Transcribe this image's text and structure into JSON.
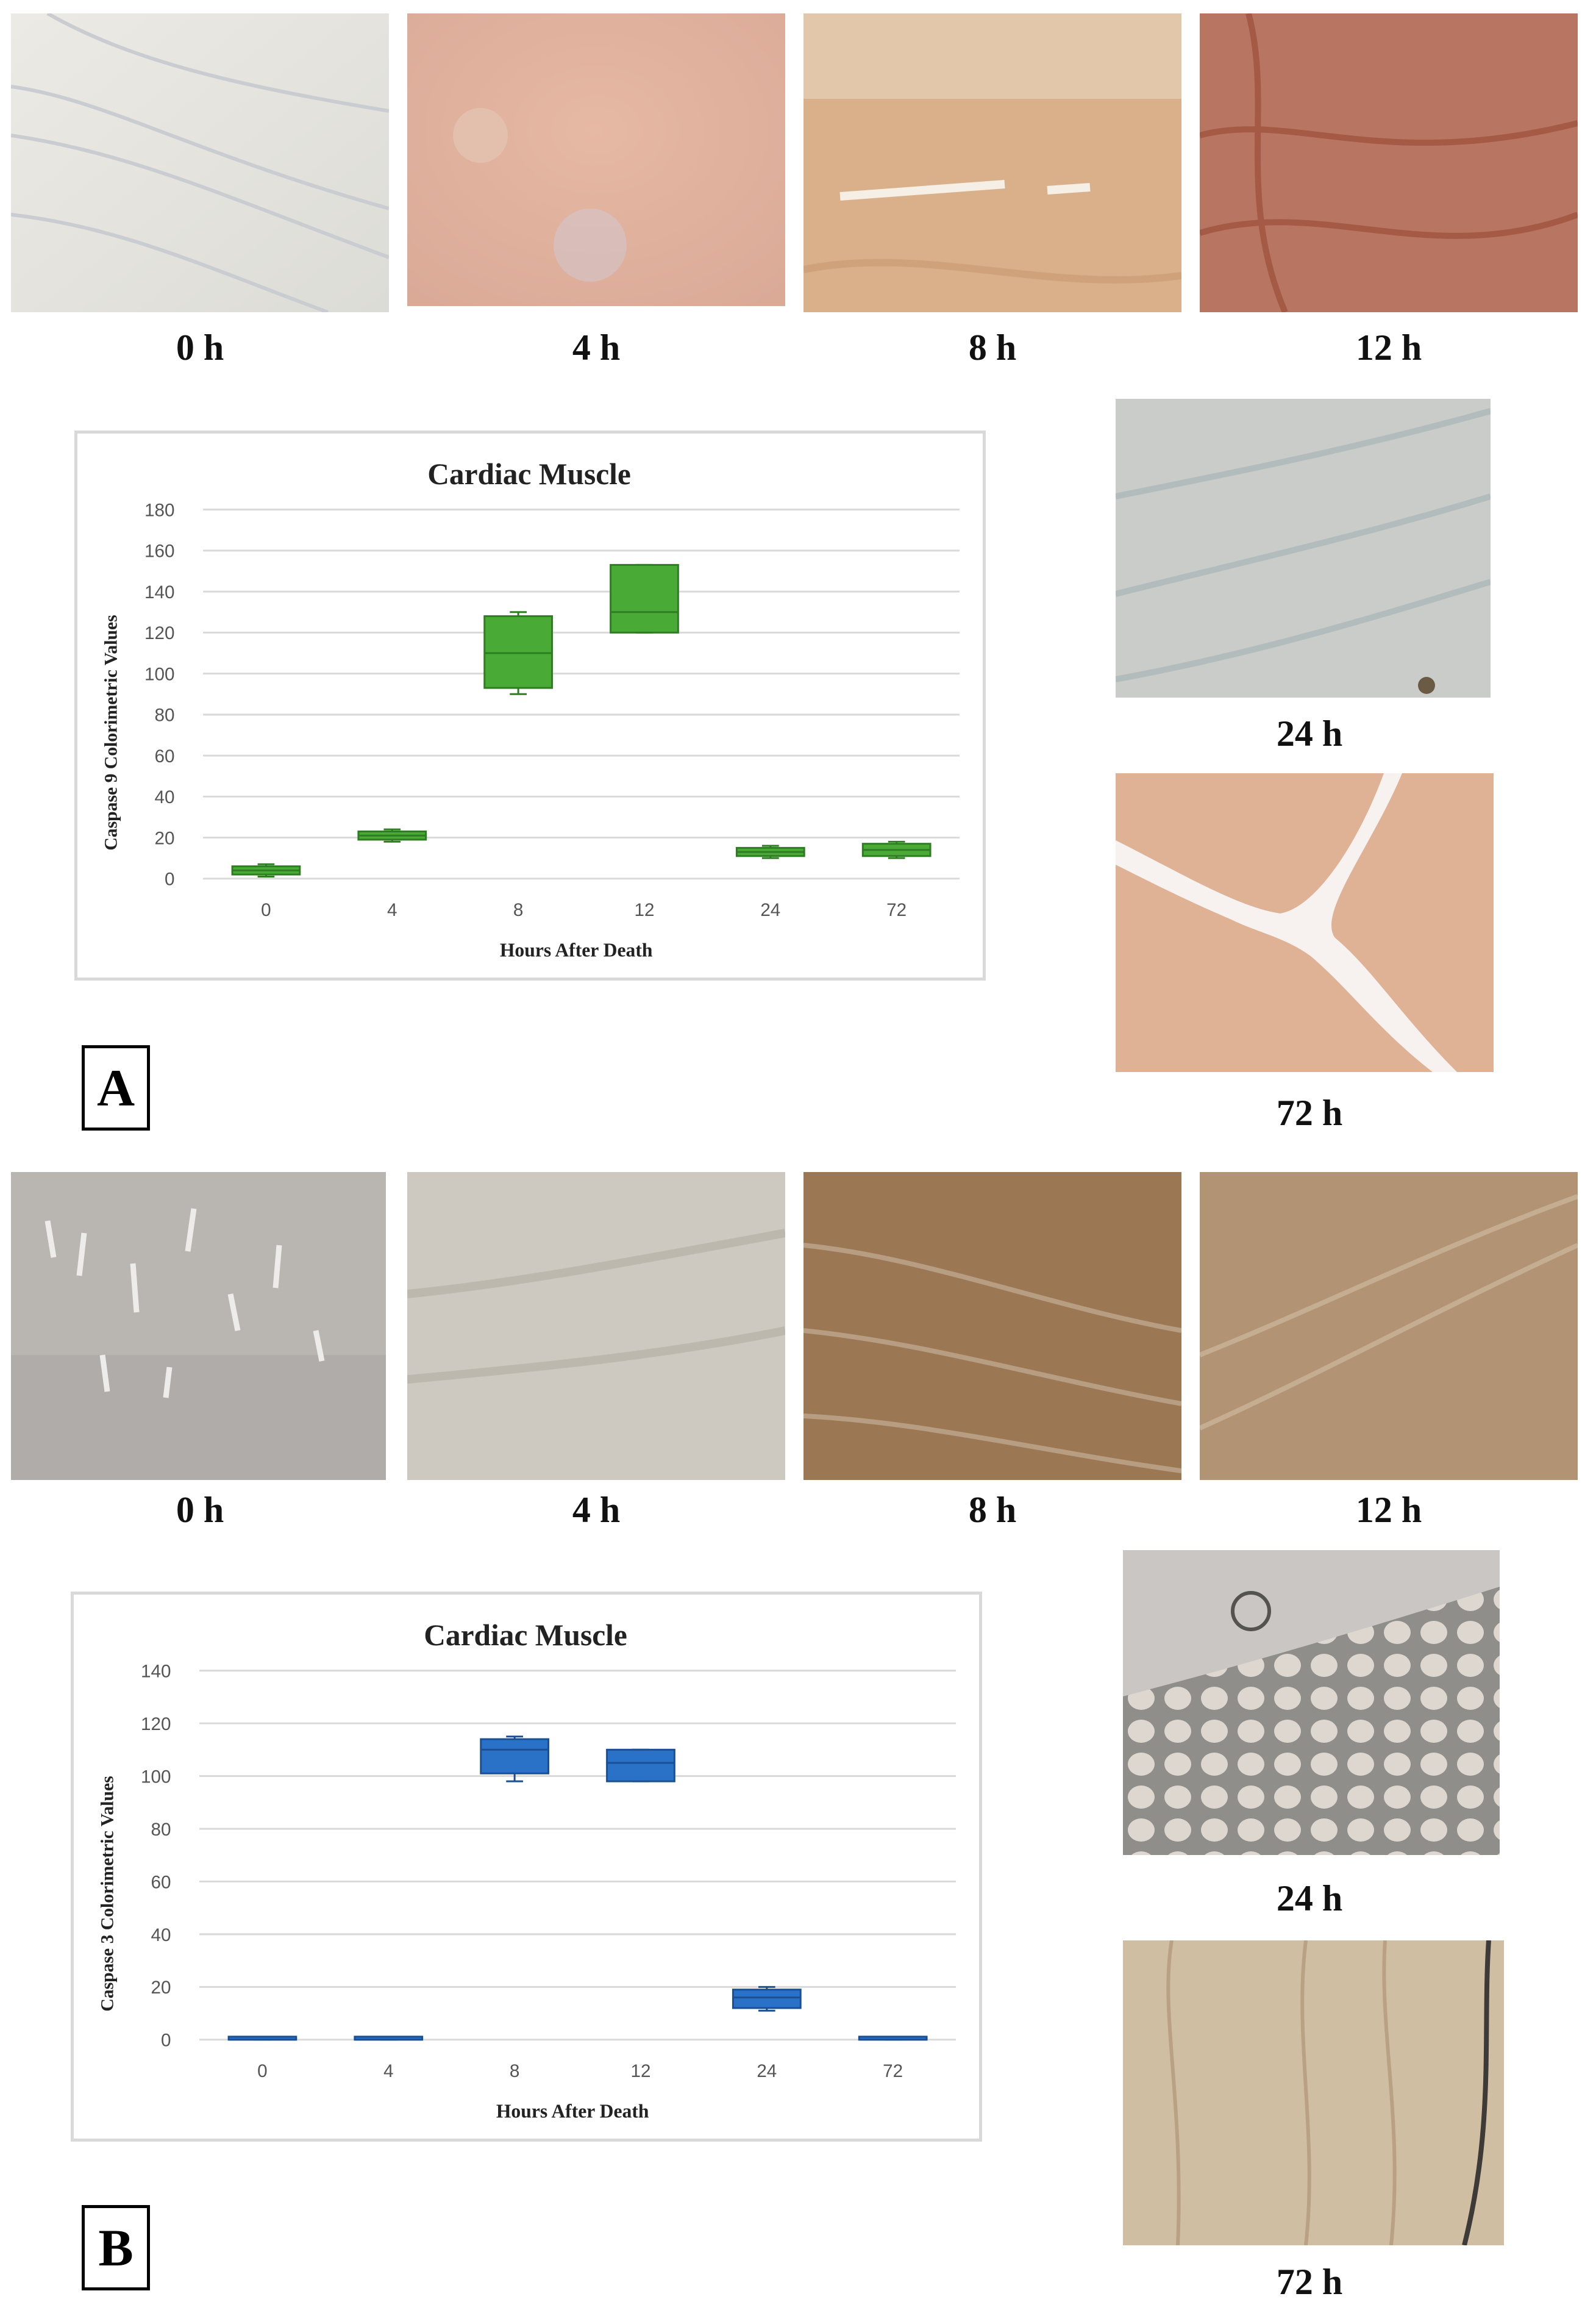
{
  "panels": [
    {
      "letter": "A",
      "time_labels": [
        "0 h",
        "4 h",
        "8 h",
        "12 h",
        "24 h",
        "72 h"
      ],
      "chart_data": {
        "type": "box",
        "title": "Cardiac Muscle",
        "xlabel": "Hours After Death",
        "ylabel": "Caspase 9 Colorimetric Values",
        "categories": [
          "0",
          "4",
          "8",
          "12",
          "24",
          "72"
        ],
        "ylim": [
          0,
          180
        ],
        "yticks": [
          0,
          20,
          40,
          60,
          80,
          100,
          120,
          140,
          160,
          180
        ],
        "grid": true,
        "color": "#4aaa36",
        "edge_color": "#2e7d22",
        "boxes": [
          {
            "min": 1,
            "q1": 2,
            "median": 4,
            "q3": 6,
            "max": 7
          },
          {
            "min": 18,
            "q1": 19,
            "median": 21,
            "q3": 23,
            "max": 24
          },
          {
            "min": 90,
            "q1": 93,
            "median": 110,
            "q3": 128,
            "max": 130
          },
          {
            "min": 120,
            "q1": 120,
            "median": 130,
            "q3": 153,
            "max": 153
          },
          {
            "min": 10,
            "q1": 11,
            "median": 13,
            "q3": 15,
            "max": 16
          },
          {
            "min": 10,
            "q1": 11,
            "median": 14,
            "q3": 17,
            "max": 18
          }
        ]
      }
    },
    {
      "letter": "B",
      "time_labels": [
        "0 h",
        "4 h",
        "8 h",
        "12 h",
        "24 h",
        "72 h"
      ],
      "chart_data": {
        "type": "box",
        "title": "Cardiac Muscle",
        "xlabel": "Hours After Death",
        "ylabel": "Caspase 3 Colorimetric Values",
        "categories": [
          "0",
          "4",
          "8",
          "12",
          "24",
          "72"
        ],
        "ylim": [
          0,
          140
        ],
        "yticks": [
          0,
          20,
          40,
          60,
          80,
          100,
          120,
          140
        ],
        "grid": true,
        "color": "#2a72c8",
        "edge_color": "#1a4f94",
        "boxes": [
          {
            "min": 0,
            "q1": 0,
            "median": 0,
            "q3": 0.5,
            "max": 0.5
          },
          {
            "min": 0,
            "q1": 0,
            "median": 0,
            "q3": 0.5,
            "max": 0.5
          },
          {
            "min": 98,
            "q1": 101,
            "median": 110,
            "q3": 114,
            "max": 115
          },
          {
            "min": 98,
            "q1": 98,
            "median": 105,
            "q3": 110,
            "max": 110
          },
          {
            "min": 11,
            "q1": 12,
            "median": 16,
            "q3": 19,
            "max": 20
          },
          {
            "min": 0,
            "q1": 0,
            "median": 0,
            "q3": 0.5,
            "max": 0.5
          }
        ]
      }
    }
  ]
}
